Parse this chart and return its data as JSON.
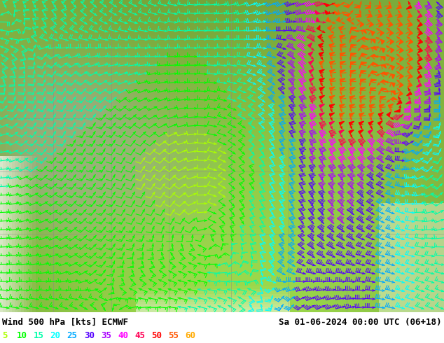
{
  "title_left": "Wind 500 hPa [kts] ECMWF",
  "title_right": "Sa 01-06-2024 00:00 UTC (06+18)",
  "legend_values": [
    5,
    10,
    15,
    20,
    25,
    30,
    35,
    40,
    45,
    50,
    55,
    60
  ],
  "legend_colors": [
    "#aaff00",
    "#00ff00",
    "#00ffaa",
    "#00ffff",
    "#00aaff",
    "#5500ff",
    "#aa00ff",
    "#ff00ff",
    "#ff0055",
    "#ff0000",
    "#ff5500",
    "#ffaa00"
  ],
  "bg_color": "#ffffff",
  "title_fontsize": 9,
  "legend_fontsize": 9,
  "wind_speed_levels": [
    5,
    10,
    15,
    20,
    25,
    30,
    35,
    40,
    45,
    50,
    55,
    60
  ],
  "colormap_colors": [
    "#aaff00",
    "#00ff00",
    "#00ffaa",
    "#00ffff",
    "#00aaff",
    "#5500ff",
    "#aa00ff",
    "#ff00ff",
    "#ff0055",
    "#ff0000",
    "#ff5500",
    "#ffaa00"
  ],
  "figsize": [
    6.34,
    4.9
  ],
  "dpi": 100
}
